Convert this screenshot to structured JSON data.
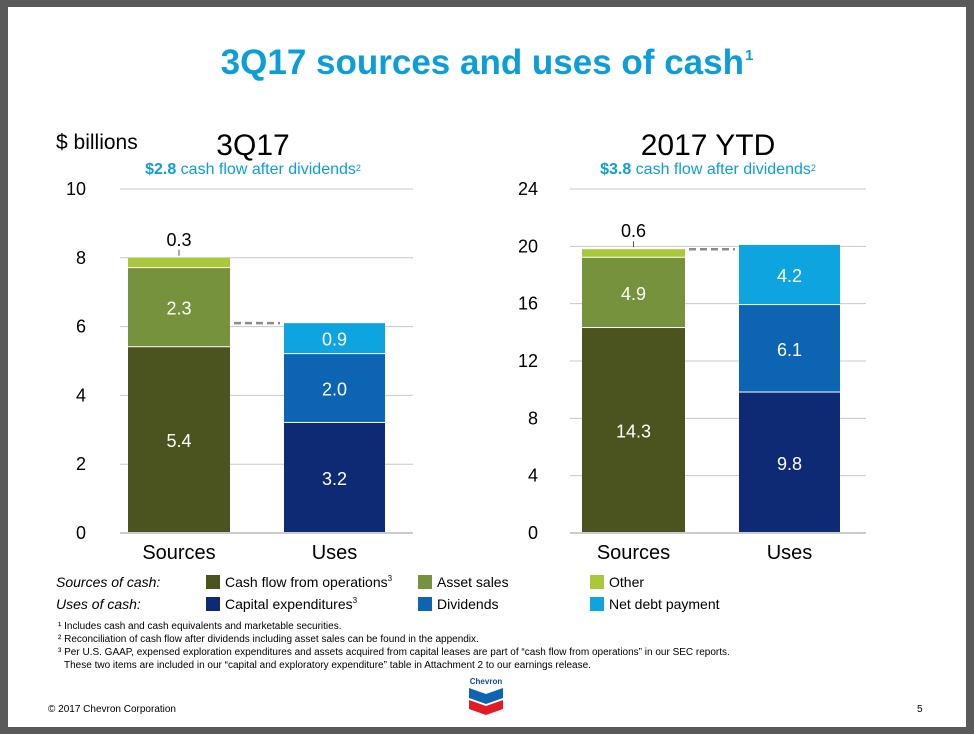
{
  "title": "3Q17 sources and uses of cash",
  "title_footnote": "1",
  "unit_label": "$ billions",
  "colors": {
    "accent": "#0b9ed8",
    "cash_flow_from_operations": "#4b531e",
    "asset_sales": "#76923c",
    "other": "#a9c93a",
    "capital_expenditures": "#0e2a74",
    "dividends": "#0d64b2",
    "net_debt_payment": "#0ea4df",
    "grid": "#c8c8c8",
    "dash": "#8c8c8c"
  },
  "charts": [
    {
      "title": "3Q17",
      "subtitle_value": "$2.8",
      "subtitle_text": " cash flow after dividends",
      "subtitle_footnote": "2"
    },
    {
      "title": "2017 YTD",
      "subtitle_value": "$3.8",
      "subtitle_text": " cash flow after dividends",
      "subtitle_footnote": "2"
    }
  ],
  "chart_data": [
    {
      "type": "bar",
      "stacked": true,
      "title": "3Q17",
      "ylabel": "$ billions",
      "ylim": [
        0,
        10
      ],
      "yticks": [
        0,
        2,
        4,
        6,
        8,
        10
      ],
      "categories": [
        "Sources",
        "Uses"
      ],
      "series": [
        {
          "name": "Cash flow from operations",
          "category": "Sources",
          "value": 5.4,
          "label": "5.4",
          "color_key": "cash_flow_from_operations"
        },
        {
          "name": "Asset sales",
          "category": "Sources",
          "value": 2.3,
          "label": "2.3",
          "color_key": "asset_sales"
        },
        {
          "name": "Other",
          "category": "Sources",
          "value": 0.3,
          "label": "0.3",
          "color_key": "other",
          "label_above": true
        },
        {
          "name": "Capital expenditures",
          "category": "Uses",
          "value": 3.2,
          "label": "3.2",
          "color_key": "capital_expenditures"
        },
        {
          "name": "Dividends",
          "category": "Uses",
          "value": 2.0,
          "label": "2.0",
          "color_key": "dividends"
        },
        {
          "name": "Net debt payment",
          "category": "Uses",
          "value": 0.9,
          "label": "0.9",
          "color_key": "net_debt_payment"
        }
      ]
    },
    {
      "type": "bar",
      "stacked": true,
      "title": "2017 YTD",
      "ylabel": "$ billions",
      "ylim": [
        0,
        24
      ],
      "yticks": [
        0,
        4,
        8,
        12,
        16,
        20,
        24
      ],
      "categories": [
        "Sources",
        "Uses"
      ],
      "series": [
        {
          "name": "Cash flow from operations",
          "category": "Sources",
          "value": 14.3,
          "label": "14.3",
          "color_key": "cash_flow_from_operations"
        },
        {
          "name": "Asset sales",
          "category": "Sources",
          "value": 4.9,
          "label": "4.9",
          "color_key": "asset_sales"
        },
        {
          "name": "Other",
          "category": "Sources",
          "value": 0.6,
          "label": "0.6",
          "color_key": "other",
          "label_above": true
        },
        {
          "name": "Capital expenditures",
          "category": "Uses",
          "value": 9.8,
          "label": "9.8",
          "color_key": "capital_expenditures"
        },
        {
          "name": "Dividends",
          "category": "Uses",
          "value": 6.1,
          "label": "6.1",
          "color_key": "dividends"
        },
        {
          "name": "Net debt payment",
          "category": "Uses",
          "value": 4.2,
          "label": "4.2",
          "color_key": "net_debt_payment"
        }
      ]
    }
  ],
  "legend": {
    "sources_label": "Sources of cash:",
    "uses_label": "Uses of cash:",
    "sources": [
      {
        "label": "Cash flow from operations",
        "footnote": "3",
        "color_key": "cash_flow_from_operations"
      },
      {
        "label": "Asset sales",
        "footnote": "",
        "color_key": "asset_sales"
      },
      {
        "label": "Other",
        "footnote": "",
        "color_key": "other"
      }
    ],
    "uses": [
      {
        "label": "Capital expenditures",
        "footnote": "3",
        "color_key": "capital_expenditures"
      },
      {
        "label": "Dividends",
        "footnote": "",
        "color_key": "dividends"
      },
      {
        "label": "Net debt payment",
        "footnote": "",
        "color_key": "net_debt_payment"
      }
    ]
  },
  "footnotes": [
    "¹ Includes cash and cash equivalents and marketable securities.",
    "² Reconciliation of cash flow after dividends including asset sales can be found in the appendix.",
    "³ Per U.S. GAAP, expensed exploration expenditures and assets acquired from capital leases are part of “cash flow from operations” in our SEC reports.",
    "These two items are included in our “capital and exploratory expenditure” table in Attachment 2 to our earnings release."
  ],
  "logo_text": "Chevron",
  "copyright": "© 2017 Chevron Corporation",
  "page_number": "5"
}
